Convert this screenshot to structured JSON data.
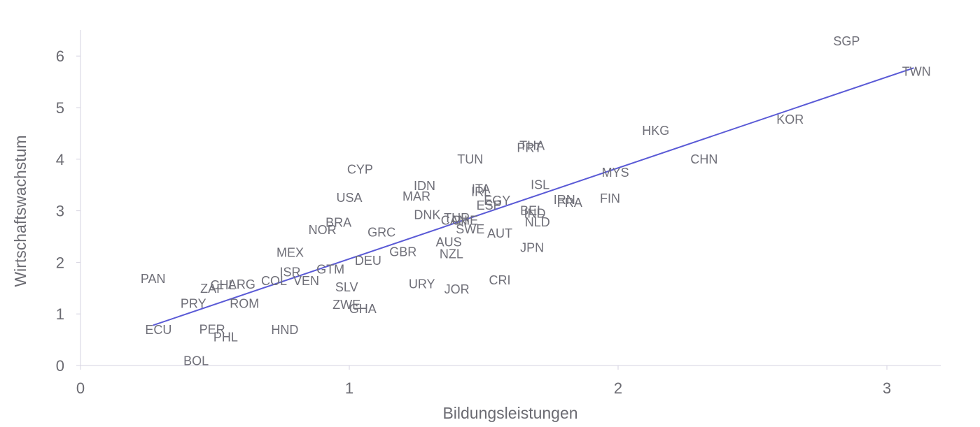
{
  "chart_data": {
    "type": "scatter",
    "title": "",
    "xlabel": "Bildungsleistungen",
    "ylabel": "Wirtschaftswachstum",
    "xlim": [
      0,
      3.2
    ],
    "ylim": [
      0,
      6.5
    ],
    "x_ticks": [
      0,
      1,
      2,
      3
    ],
    "y_ticks": [
      0,
      1,
      2,
      3,
      4,
      5,
      6
    ],
    "grid": false,
    "marker": "country code label",
    "trend_line": {
      "x": [
        0.27,
        3.1
      ],
      "y": [
        0.78,
        5.77
      ],
      "color": "#5a5ad6"
    },
    "points": [
      {
        "label": "SGP",
        "x": 2.85,
        "y": 6.29
      },
      {
        "label": "TWN",
        "x": 3.11,
        "y": 5.7
      },
      {
        "label": "KOR",
        "x": 2.64,
        "y": 4.77
      },
      {
        "label": "HKG",
        "x": 2.14,
        "y": 4.55
      },
      {
        "label": "CHN",
        "x": 2.32,
        "y": 4.0
      },
      {
        "label": "MYS",
        "x": 1.99,
        "y": 3.74
      },
      {
        "label": "FIN",
        "x": 1.97,
        "y": 3.24
      },
      {
        "label": "IRN",
        "x": 1.8,
        "y": 3.21
      },
      {
        "label": "FRA",
        "x": 1.82,
        "y": 3.16
      },
      {
        "label": "THA",
        "x": 1.68,
        "y": 4.26
      },
      {
        "label": "PRT",
        "x": 1.67,
        "y": 4.22
      },
      {
        "label": "ISL",
        "x": 1.71,
        "y": 3.5
      },
      {
        "label": "BEL",
        "x": 1.68,
        "y": 3.0
      },
      {
        "label": "IND",
        "x": 1.69,
        "y": 2.95
      },
      {
        "label": "NLD",
        "x": 1.7,
        "y": 2.78
      },
      {
        "label": "JPN",
        "x": 1.68,
        "y": 2.28
      },
      {
        "label": "CRI",
        "x": 1.56,
        "y": 1.65
      },
      {
        "label": "TUN",
        "x": 1.45,
        "y": 4.0
      },
      {
        "label": "ITA",
        "x": 1.49,
        "y": 3.42
      },
      {
        "label": "IRL",
        "x": 1.49,
        "y": 3.37
      },
      {
        "label": "EGY",
        "x": 1.55,
        "y": 3.2
      },
      {
        "label": "ESP",
        "x": 1.52,
        "y": 3.1
      },
      {
        "label": "TUR",
        "x": 1.4,
        "y": 2.86
      },
      {
        "label": "CAN",
        "x": 1.39,
        "y": 2.81
      },
      {
        "label": "CHE",
        "x": 1.43,
        "y": 2.81
      },
      {
        "label": "SWE",
        "x": 1.45,
        "y": 2.64
      },
      {
        "label": "AUT",
        "x": 1.56,
        "y": 2.56
      },
      {
        "label": "AUS",
        "x": 1.37,
        "y": 2.39
      },
      {
        "label": "NZL",
        "x": 1.38,
        "y": 2.16
      },
      {
        "label": "JOR",
        "x": 1.4,
        "y": 1.48
      },
      {
        "label": "IDN",
        "x": 1.28,
        "y": 3.48
      },
      {
        "label": "MAR",
        "x": 1.25,
        "y": 3.28
      },
      {
        "label": "DNK",
        "x": 1.29,
        "y": 2.92
      },
      {
        "label": "URY",
        "x": 1.27,
        "y": 1.58
      },
      {
        "label": "GBR",
        "x": 1.2,
        "y": 2.2
      },
      {
        "label": "CYP",
        "x": 1.04,
        "y": 3.8
      },
      {
        "label": "USA",
        "x": 1.0,
        "y": 3.25
      },
      {
        "label": "BRA",
        "x": 0.96,
        "y": 2.77
      },
      {
        "label": "GRC",
        "x": 1.12,
        "y": 2.58
      },
      {
        "label": "NOR",
        "x": 0.9,
        "y": 2.63
      },
      {
        "label": "DEU",
        "x": 1.07,
        "y": 2.03
      },
      {
        "label": "GTM",
        "x": 0.93,
        "y": 1.86
      },
      {
        "label": "SLV",
        "x": 0.99,
        "y": 1.52
      },
      {
        "label": "ZWE",
        "x": 0.99,
        "y": 1.18
      },
      {
        "label": "GHA",
        "x": 1.05,
        "y": 1.1
      },
      {
        "label": "MEX",
        "x": 0.78,
        "y": 2.19
      },
      {
        "label": "ISR",
        "x": 0.78,
        "y": 1.81
      },
      {
        "label": "COL",
        "x": 0.72,
        "y": 1.64
      },
      {
        "label": "VEN",
        "x": 0.84,
        "y": 1.64
      },
      {
        "label": "ARG",
        "x": 0.6,
        "y": 1.57
      },
      {
        "label": "CHL",
        "x": 0.53,
        "y": 1.56
      },
      {
        "label": "ZAF",
        "x": 0.49,
        "y": 1.49
      },
      {
        "label": "ROM",
        "x": 0.61,
        "y": 1.2
      },
      {
        "label": "PRY",
        "x": 0.42,
        "y": 1.2
      },
      {
        "label": "PAN",
        "x": 0.27,
        "y": 1.68
      },
      {
        "label": "ECU",
        "x": 0.29,
        "y": 0.69
      },
      {
        "label": "PER",
        "x": 0.49,
        "y": 0.7
      },
      {
        "label": "PHL",
        "x": 0.54,
        "y": 0.55
      },
      {
        "label": "HND",
        "x": 0.76,
        "y": 0.69
      },
      {
        "label": "BOL",
        "x": 0.43,
        "y": 0.09
      }
    ]
  }
}
